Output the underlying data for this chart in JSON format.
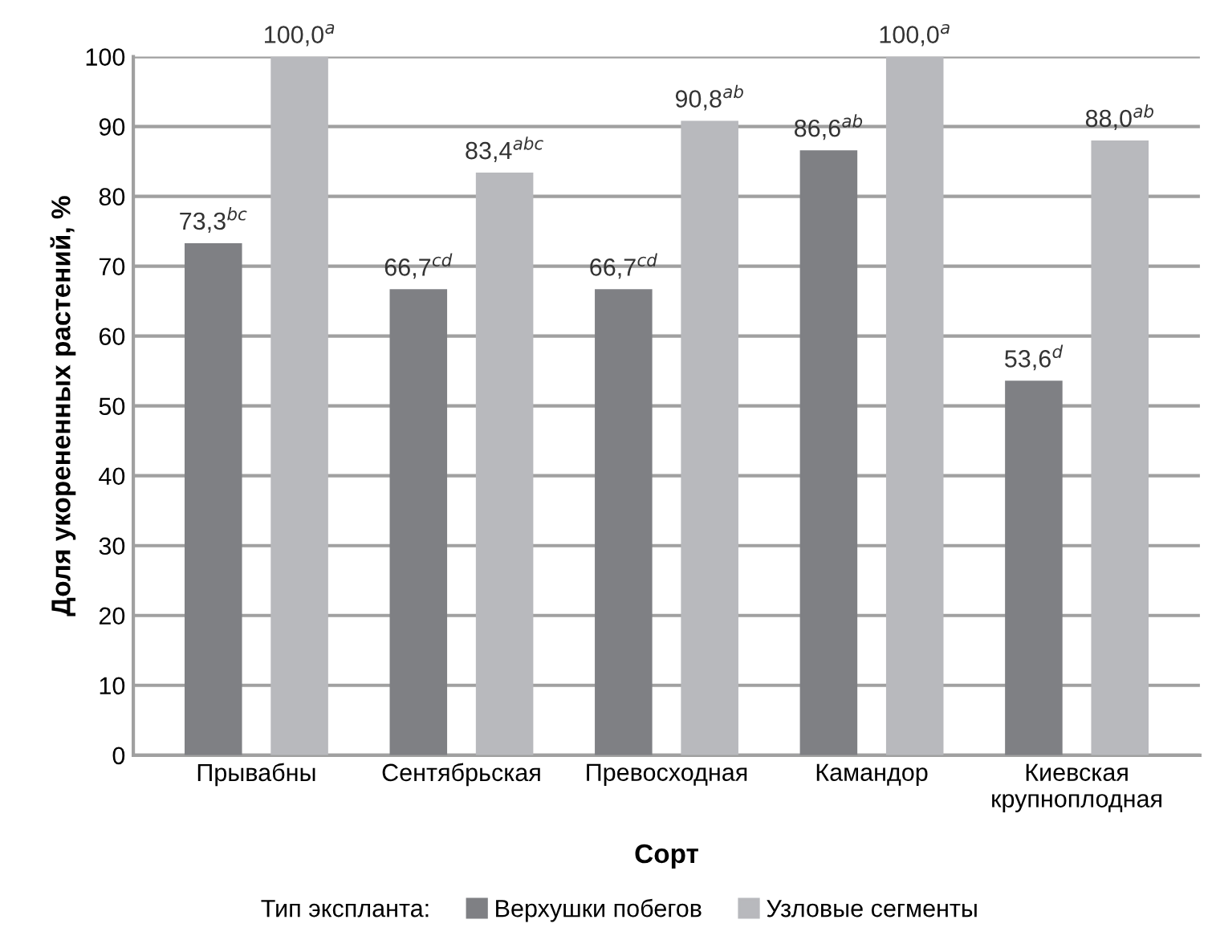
{
  "chart_data": {
    "type": "bar",
    "xlabel": "Сорт",
    "ylabel": "Доля укорененных растений, %",
    "legend_title": "Тип экспланта:",
    "categories": [
      "Прывабны",
      "Сентябрьская",
      "Превосходная",
      "Камандор",
      "Киевская\nкрупноплодная"
    ],
    "series": [
      {
        "name": "Верхушки побегов",
        "color": "#7f8084",
        "values": [
          73.3,
          66.7,
          66.7,
          86.6,
          53.6
        ],
        "value_labels": [
          "73,3$^{bc}$",
          "66,7$^{cd}$",
          "66,7$^{cd}$",
          "86,6$^{ab}$",
          "53,6$^{d}$"
        ]
      },
      {
        "name": "Узловые сегменты",
        "color": "#b8b9bd",
        "values": [
          100.0,
          83.4,
          90.8,
          100.0,
          88.0
        ],
        "value_labels": [
          "100,0$^{a}$",
          "83,4$^{abc}$",
          "90,8$^{ab}$",
          "100,0$^{a}$",
          "88,0$^{ab}$"
        ]
      }
    ],
    "ylim": [
      0,
      100
    ],
    "yticks": [
      0,
      10,
      20,
      30,
      40,
      50,
      60,
      70,
      80,
      90,
      100
    ],
    "grid": "y",
    "legend": "bottom"
  }
}
